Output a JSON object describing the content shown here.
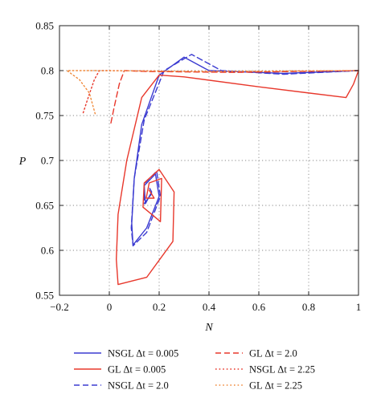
{
  "chart_data": {
    "type": "line",
    "xlabel": "N",
    "ylabel": "P",
    "xlim": [
      -0.2,
      1.0
    ],
    "ylim": [
      0.55,
      0.85
    ],
    "grid": true,
    "legend_position": "below",
    "x_tick_labels": [
      "−0.2",
      "0",
      "0.2",
      "0.4",
      "0.6",
      "0.8",
      "1"
    ],
    "y_tick_labels": [
      "0.55",
      "0.6",
      "0.65",
      "0.7",
      "0.75",
      "0.8",
      "0.85"
    ],
    "legend": [
      {
        "text": "NSGL Δt = 0.005",
        "color": "#3b3bd1",
        "dash": "solid"
      },
      {
        "text": "GL Δt = 2.0",
        "color": "#e8382c",
        "dash": "dashed"
      },
      {
        "text": "GL Δt = 0.005",
        "color": "#e8382c",
        "dash": "solid"
      },
      {
        "text": "NSGL Δt = 2.25",
        "color": "#e8382c",
        "dash": "dotted"
      },
      {
        "text": "NSGL Δt = 2.0",
        "color": "#3b3bd1",
        "dash": "dashed"
      },
      {
        "text": "GL Δt = 2.25",
        "color": "#f08a3c",
        "dash": "dotted"
      }
    ],
    "series": [
      {
        "color": "#3b3bd1",
        "dash": "solid",
        "points": [
          [
            1.0,
            0.8
          ],
          [
            0.7,
            0.797
          ],
          [
            0.4,
            0.8
          ],
          [
            0.3,
            0.815
          ],
          [
            0.2,
            0.795
          ],
          [
            0.13,
            0.74
          ],
          [
            0.1,
            0.68
          ],
          [
            0.09,
            0.63
          ],
          [
            0.095,
            0.606
          ],
          [
            0.15,
            0.625
          ],
          [
            0.2,
            0.66
          ],
          [
            0.185,
            0.685
          ],
          [
            0.14,
            0.672
          ],
          [
            0.145,
            0.652
          ],
          [
            0.17,
            0.665
          ],
          [
            0.162,
            0.669
          ]
        ]
      },
      {
        "color": "#3b3bd1",
        "dash": "dashed",
        "points": [
          [
            1.0,
            0.8
          ],
          [
            0.7,
            0.796
          ],
          [
            0.45,
            0.8
          ],
          [
            0.33,
            0.818
          ],
          [
            0.22,
            0.8
          ],
          [
            0.14,
            0.745
          ],
          [
            0.1,
            0.68
          ],
          [
            0.088,
            0.625
          ],
          [
            0.095,
            0.605
          ],
          [
            0.15,
            0.62
          ],
          [
            0.205,
            0.66
          ],
          [
            0.19,
            0.688
          ],
          [
            0.14,
            0.674
          ],
          [
            0.14,
            0.652
          ],
          [
            0.17,
            0.663
          ],
          [
            0.163,
            0.667
          ]
        ]
      },
      {
        "color": "#e8382c",
        "dash": "solid",
        "points": [
          [
            1.0,
            0.8
          ],
          [
            0.98,
            0.785
          ],
          [
            0.95,
            0.77
          ],
          [
            0.6,
            0.782
          ],
          [
            0.3,
            0.793
          ],
          [
            0.2,
            0.795
          ],
          [
            0.13,
            0.77
          ],
          [
            0.07,
            0.7
          ],
          [
            0.035,
            0.64
          ],
          [
            0.028,
            0.59
          ],
          [
            0.035,
            0.562
          ],
          [
            0.15,
            0.57
          ],
          [
            0.255,
            0.61
          ],
          [
            0.26,
            0.665
          ],
          [
            0.2,
            0.69
          ],
          [
            0.14,
            0.675
          ],
          [
            0.135,
            0.648
          ],
          [
            0.205,
            0.632
          ],
          [
            0.21,
            0.68
          ],
          [
            0.16,
            0.675
          ],
          [
            0.148,
            0.658
          ],
          [
            0.18,
            0.658
          ],
          [
            0.16,
            0.667
          ]
        ]
      },
      {
        "color": "#e8382c",
        "dash": "dashed",
        "points": [
          [
            1.0,
            0.8
          ],
          [
            0.5,
            0.798
          ],
          [
            0.15,
            0.799
          ],
          [
            0.06,
            0.8
          ],
          [
            0.04,
            0.785
          ],
          [
            0.02,
            0.76
          ],
          [
            0.005,
            0.74
          ]
        ]
      },
      {
        "color": "#e8382c",
        "dash": "dotted",
        "points": [
          [
            1.0,
            0.8
          ],
          [
            0.4,
            0.799
          ],
          [
            0.0,
            0.8
          ],
          [
            -0.04,
            0.8
          ],
          [
            -0.06,
            0.79
          ],
          [
            -0.085,
            0.77
          ],
          [
            -0.105,
            0.753
          ]
        ]
      },
      {
        "color": "#f08a3c",
        "dash": "dotted",
        "points": [
          [
            1.0,
            0.8
          ],
          [
            0.4,
            0.799
          ],
          [
            -0.05,
            0.8
          ],
          [
            -0.17,
            0.8
          ],
          [
            -0.12,
            0.79
          ],
          [
            -0.08,
            0.775
          ],
          [
            -0.055,
            0.75
          ]
        ]
      }
    ]
  }
}
